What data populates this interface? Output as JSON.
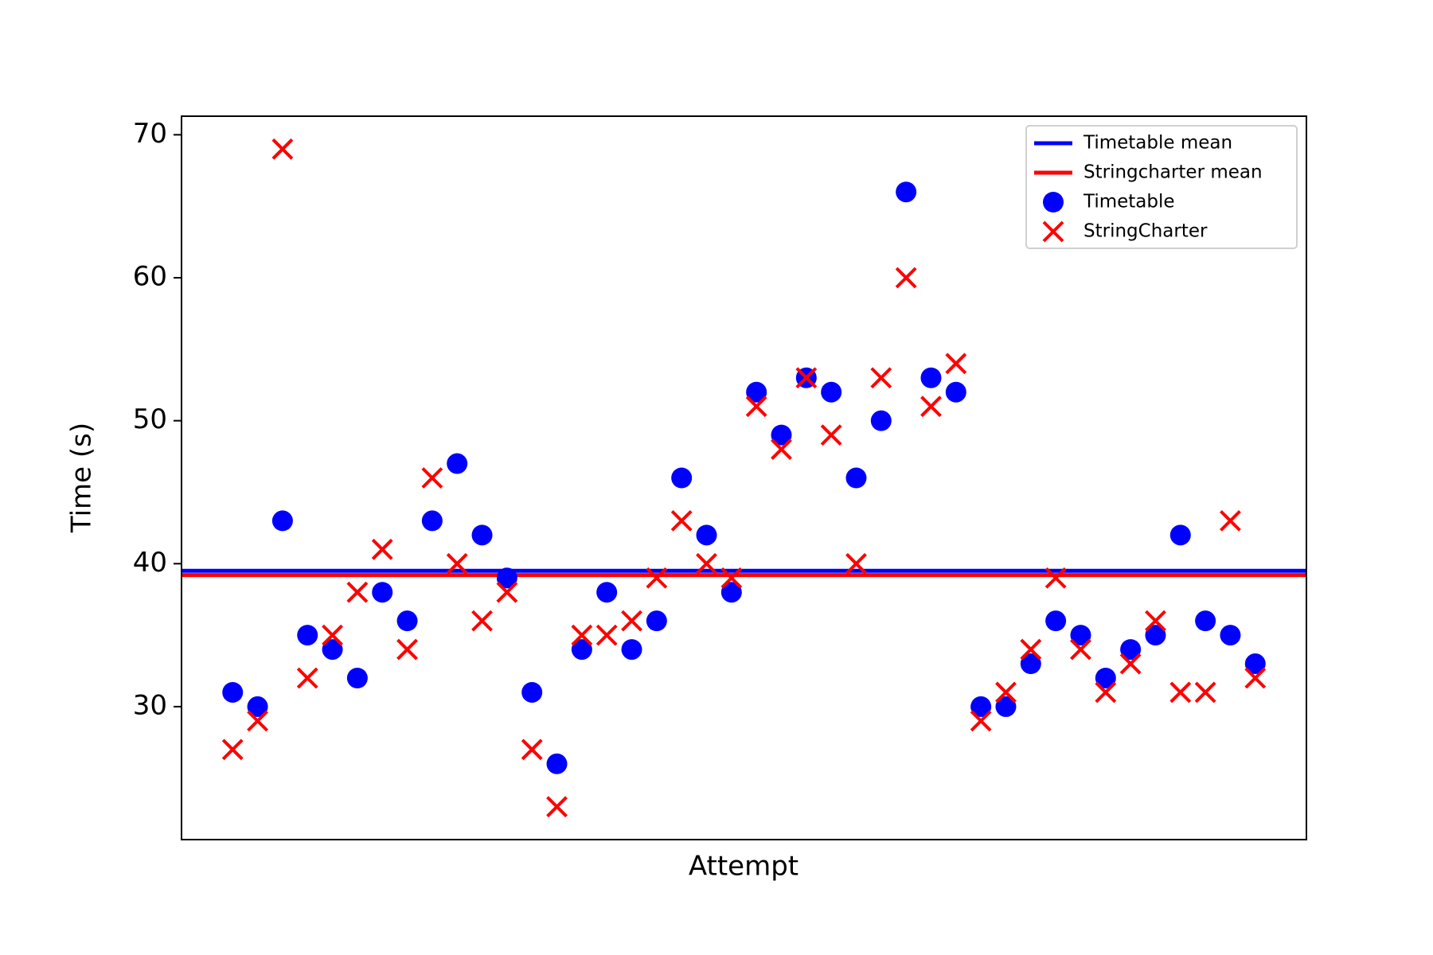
{
  "chart_data": {
    "type": "scatter",
    "x_label": "Attempt",
    "y_label": "Time (s)",
    "x": [
      0,
      1,
      2,
      3,
      4,
      5,
      6,
      7,
      8,
      9,
      10,
      11,
      12,
      13,
      14,
      15,
      16,
      17,
      18,
      19,
      20,
      21,
      22,
      23,
      24,
      25,
      26,
      27,
      28,
      29,
      30,
      31,
      32,
      33,
      34,
      35,
      36,
      37,
      38,
      39,
      40,
      41
    ],
    "xlim": [
      -2.05,
      43.05
    ],
    "ylim": [
      20.7,
      71.3
    ],
    "yticks": [
      30,
      40,
      50,
      60,
      70
    ],
    "legend": "upper right",
    "reference_lines": [
      {
        "name": "Timetable mean",
        "color": "#0000ff",
        "value": 39.5
      },
      {
        "name": "Stringcharter mean",
        "color": "#ff0000",
        "value": 39.2
      }
    ],
    "series": [
      {
        "name": "Timetable",
        "color": "#0000ff",
        "marker": "o",
        "values": [
          31,
          30,
          43,
          35,
          34,
          32,
          38,
          36,
          43,
          47,
          42,
          39,
          31,
          26,
          34,
          38,
          34,
          36,
          46,
          42,
          38,
          52,
          49,
          53,
          52,
          46,
          50,
          66,
          53,
          52,
          30,
          30,
          33,
          36,
          35,
          32,
          34,
          35,
          42,
          36,
          35,
          33
        ]
      },
      {
        "name": "StringCharter",
        "color": "#ff0000",
        "marker": "x",
        "values": [
          27,
          29,
          69,
          32,
          35,
          38,
          41,
          34,
          46,
          40,
          36,
          38,
          27,
          23,
          35,
          35,
          36,
          39,
          43,
          40,
          39,
          51,
          48,
          53,
          49,
          40,
          53,
          60,
          51,
          54,
          29,
          31,
          34,
          39,
          34,
          31,
          33,
          36,
          31,
          31,
          43,
          32
        ]
      }
    ]
  }
}
